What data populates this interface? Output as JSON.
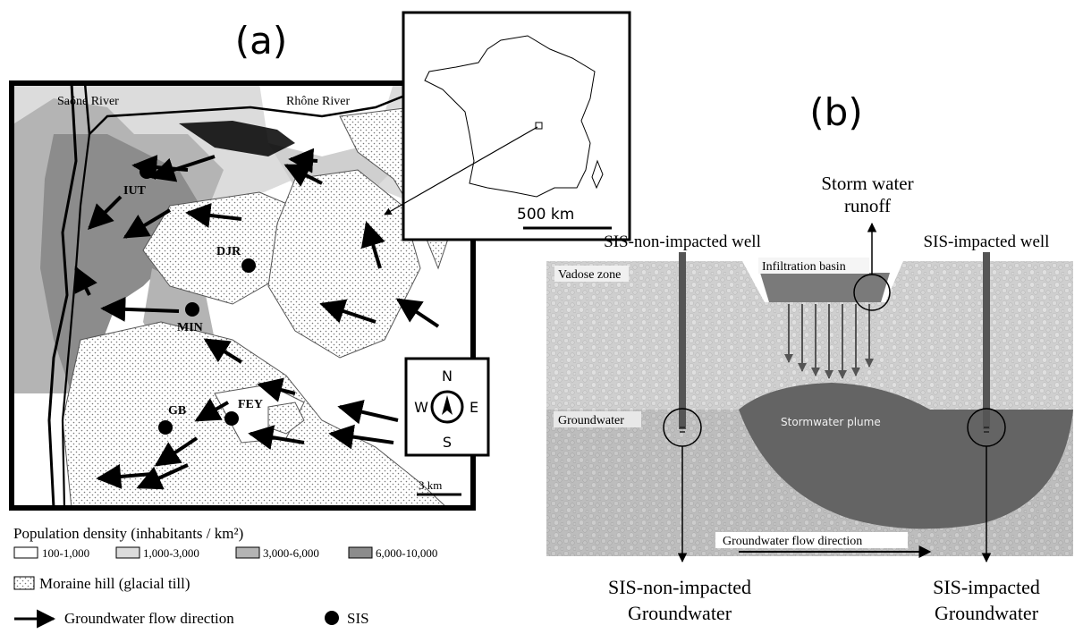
{
  "panel_a": {
    "label": "(a)",
    "rivers": {
      "saone": "Saône River",
      "rhone": "Rhône River"
    },
    "sites": [
      {
        "code": "IUT"
      },
      {
        "code": "DJR"
      },
      {
        "code": "MIN"
      },
      {
        "code": "FEY"
      },
      {
        "code": "GB"
      }
    ],
    "compass": {
      "n": "N",
      "s": "S",
      "e": "E",
      "w": "W"
    },
    "scale_main": "3 km",
    "scale_inset": "500 km",
    "legend": {
      "density_title": "Population density (inhabitants / km²)",
      "classes": [
        "100-1,000",
        "1,000-3,000",
        "3,000-6,000",
        "6,000-10,000"
      ],
      "class_colors": [
        "#ffffff",
        "#dcdcdc",
        "#b4b4b4",
        "#8c8c8c"
      ],
      "moraine": "Moraine hill (glacial till)",
      "flow": "Groundwater flow direction",
      "sis": "SIS"
    }
  },
  "panel_b": {
    "label": "(b)",
    "storm_runoff_line1": "Storm water",
    "storm_runoff_line2": "runoff",
    "well_left": "SIS-non-impacted well",
    "well_right": "SIS-impacted well",
    "infiltration_basin": "Infiltration basin",
    "vadose_zone": "Vadose zone",
    "groundwater": "Groundwater",
    "plume": "Stormwater plume",
    "flow_direction": "Groundwater flow direction",
    "out_left_line1": "SIS-non-impacted",
    "out_left_line2": "Groundwater",
    "out_right_line1": "SIS-impacted",
    "out_right_line2": "Groundwater"
  }
}
